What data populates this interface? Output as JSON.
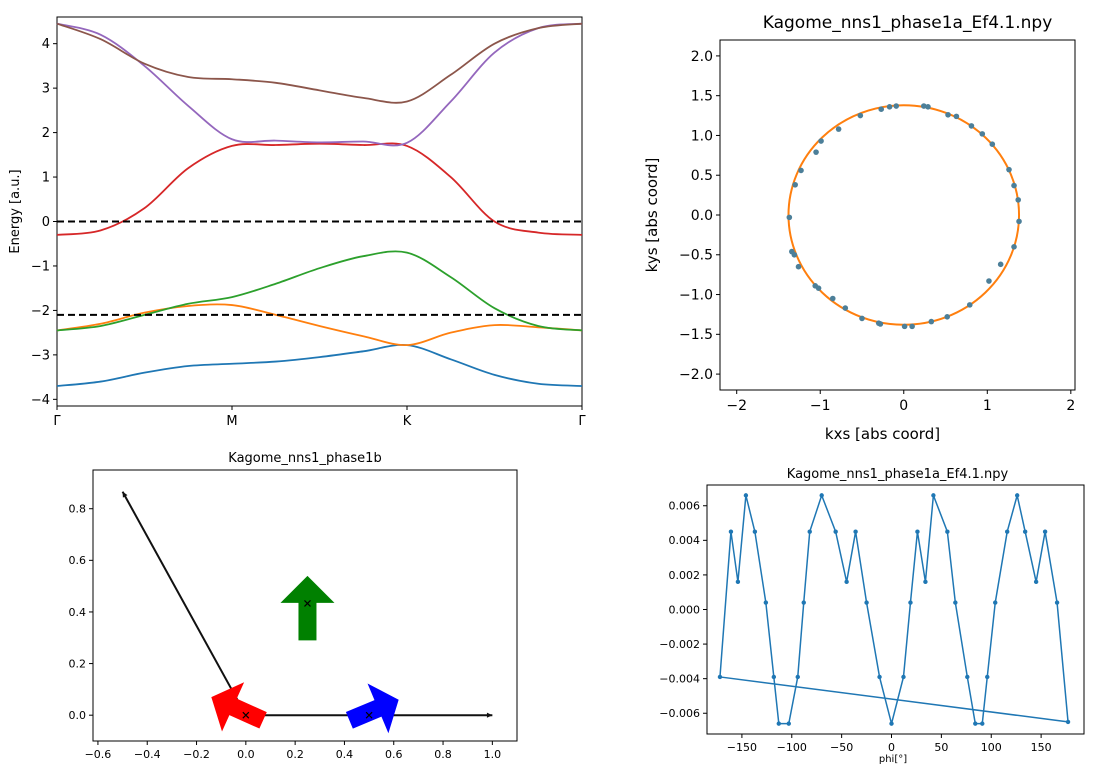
{
  "chart_data": [
    {
      "type": "line",
      "title": "",
      "xlabel": "",
      "ylabel": "Energy [a.u.]",
      "xlim": [
        0,
        3
      ],
      "ylim": [
        -4.15,
        4.6
      ],
      "xticks": [
        0,
        1,
        2,
        3
      ],
      "xticklabels": [
        "Γ",
        "M",
        "K",
        "Γ"
      ],
      "yticks": [
        -4,
        -3,
        -2,
        -1,
        0,
        1,
        2,
        3,
        4
      ],
      "yticklabels": [
        "−4",
        "−3",
        "−2",
        "−1",
        "0",
        "1",
        "2",
        "3",
        "4"
      ],
      "x": [
        0,
        0.25,
        0.5,
        0.75,
        1,
        1.25,
        1.5,
        1.75,
        2,
        2.25,
        2.5,
        2.75,
        3
      ],
      "series": [
        {
          "color": "#1f77b4",
          "values": [
            -3.7,
            -3.6,
            -3.4,
            -3.25,
            -3.2,
            -3.15,
            -3.05,
            -2.92,
            -2.78,
            -3.1,
            -3.45,
            -3.65,
            -3.7
          ]
        },
        {
          "color": "#ff7f0e",
          "values": [
            -2.45,
            -2.3,
            -2.05,
            -1.9,
            -1.88,
            -2.1,
            -2.35,
            -2.58,
            -2.78,
            -2.5,
            -2.33,
            -2.38,
            -2.45
          ]
        },
        {
          "color": "#2ca02c",
          "values": [
            -2.45,
            -2.35,
            -2.1,
            -1.85,
            -1.7,
            -1.4,
            -1.05,
            -0.78,
            -0.7,
            -1.25,
            -1.95,
            -2.35,
            -2.45
          ]
        },
        {
          "color": "#d62728",
          "values": [
            -0.3,
            -0.2,
            0.3,
            1.2,
            1.7,
            1.72,
            1.75,
            1.72,
            1.7,
            1.0,
            0.0,
            -0.25,
            -0.3
          ]
        },
        {
          "color": "#9467bd",
          "values": [
            4.45,
            4.2,
            3.5,
            2.6,
            1.85,
            1.82,
            1.78,
            1.8,
            1.77,
            2.7,
            3.8,
            4.35,
            4.45
          ]
        },
        {
          "color": "#8c564b",
          "values": [
            4.45,
            4.1,
            3.55,
            3.25,
            3.2,
            3.12,
            2.95,
            2.78,
            2.7,
            3.3,
            4.0,
            4.35,
            4.45
          ]
        }
      ],
      "hlines": [
        0,
        -2.1
      ]
    },
    {
      "type": "scatter",
      "title": "Kagome_nns1_phase1a_Ef4.1.npy",
      "xlabel": "kxs [abs coord]",
      "ylabel": "kys [abs coord]",
      "xlim": [
        -2.2,
        2.05
      ],
      "ylim": [
        -2.2,
        2.2
      ],
      "xticks": [
        -2,
        -1,
        0,
        1,
        2
      ],
      "xticklabels": [
        "−2",
        "−1",
        "0",
        "1",
        "2"
      ],
      "yticks": [
        -2.0,
        -1.5,
        -1.0,
        -0.5,
        0.0,
        0.5,
        1.0,
        1.5,
        2.0
      ],
      "yticklabels": [
        "−2.0",
        "−1.5",
        "−1.0",
        "−0.5",
        "0.0",
        "0.5",
        "1.0",
        "1.5",
        "2.0"
      ],
      "fit_circle": {
        "cx": 0.0,
        "cy": 0.0,
        "r": 1.38,
        "color": "#ff7f0e"
      },
      "points_color": "#4c7f99",
      "points": [
        [
          1.37,
          0.19
        ],
        [
          1.38,
          -0.08
        ],
        [
          1.32,
          -0.4
        ],
        [
          1.16,
          -0.62
        ],
        [
          1.02,
          -0.83
        ],
        [
          0.79,
          -1.13
        ],
        [
          0.52,
          -1.28
        ],
        [
          0.33,
          -1.34
        ],
        [
          0.1,
          -1.4
        ],
        [
          0.01,
          -1.4
        ],
        [
          -0.28,
          -1.37
        ],
        [
          -0.3,
          -1.36
        ],
        [
          -0.5,
          -1.3
        ],
        [
          -0.7,
          -1.17
        ],
        [
          -0.85,
          -1.05
        ],
        [
          -1.02,
          -0.92
        ],
        [
          -1.06,
          -0.89
        ],
        [
          -1.26,
          -0.65
        ],
        [
          -1.31,
          -0.5
        ],
        [
          -1.34,
          -0.46
        ],
        [
          -1.37,
          -0.03
        ],
        [
          -1.3,
          0.38
        ],
        [
          -1.23,
          0.56
        ],
        [
          -1.05,
          0.79
        ],
        [
          -0.99,
          0.93
        ],
        [
          -0.78,
          1.08
        ],
        [
          -0.52,
          1.25
        ],
        [
          -0.27,
          1.33
        ],
        [
          -0.17,
          1.36
        ],
        [
          -0.09,
          1.37
        ],
        [
          0.24,
          1.37
        ],
        [
          0.29,
          1.36
        ],
        [
          0.53,
          1.26
        ],
        [
          0.63,
          1.24
        ],
        [
          0.81,
          1.12
        ],
        [
          0.94,
          1.02
        ],
        [
          1.06,
          0.89
        ],
        [
          1.26,
          0.57
        ],
        [
          1.32,
          0.37
        ]
      ]
    },
    {
      "type": "scatter",
      "title": "Kagome_nns1_phase1b",
      "xlabel": "",
      "ylabel": "",
      "xlim": [
        -0.62,
        1.1
      ],
      "ylim": [
        -0.1,
        0.95
      ],
      "xticks": [
        -0.6,
        -0.4,
        -0.2,
        0.0,
        0.2,
        0.4,
        0.6,
        0.8,
        1.0
      ],
      "xticklabels": [
        "−0.6",
        "−0.4",
        "−0.2",
        "0.0",
        "0.2",
        "0.4",
        "0.6",
        "0.8",
        "1.0"
      ],
      "yticks": [
        0.0,
        0.2,
        0.4,
        0.6,
        0.8
      ],
      "yticklabels": [
        "0.0",
        "0.2",
        "0.4",
        "0.6",
        "0.8"
      ],
      "lattice_vectors": [
        {
          "from": [
            0,
            0
          ],
          "to": [
            -0.5,
            0.866
          ]
        },
        {
          "from": [
            0,
            0
          ],
          "to": [
            1,
            0
          ]
        }
      ],
      "sites": [
        [
          0,
          0
        ],
        [
          0.25,
          0.433
        ],
        [
          0.5,
          0
        ]
      ],
      "spin_arrows": [
        {
          "color": "#0000ff",
          "from": [
            0.42,
            -0.02
          ],
          "to": [
            0.62,
            0.06
          ]
        },
        {
          "color": "#ff0000",
          "from": [
            0.07,
            -0.02
          ],
          "to": [
            -0.14,
            0.07
          ]
        },
        {
          "color": "#008000",
          "from": [
            0.25,
            0.29
          ],
          "to": [
            0.25,
            0.54
          ]
        }
      ]
    },
    {
      "type": "line",
      "title": "Kagome_nns1_phase1a_Ef4.1.npy",
      "xlabel": "phi[°]",
      "ylabel": "",
      "xlim": [
        -185,
        193
      ],
      "ylim": [
        -0.0072,
        0.0072
      ],
      "xticks": [
        -150,
        -100,
        -50,
        0,
        50,
        100,
        150
      ],
      "xticklabels": [
        "−150",
        "−100",
        "−50",
        "0",
        "50",
        "100",
        "150"
      ],
      "yticks": [
        -0.006,
        -0.004,
        -0.002,
        0.0,
        0.002,
        0.004,
        0.006
      ],
      "yticklabels": [
        "−0.006",
        "−0.004",
        "−0.002",
        "0.000",
        "0.002",
        "0.004",
        "0.006"
      ],
      "color": "#1f77b4",
      "x": [
        -172,
        -161,
        -154,
        -146,
        -137,
        -126,
        -118,
        -113,
        -103,
        -94,
        -88,
        -82,
        -70,
        -56,
        -45,
        -36,
        -25,
        -12,
        0,
        12,
        19,
        26,
        34,
        42,
        56,
        64,
        76,
        84,
        91,
        96,
        104,
        116,
        126,
        134,
        145,
        154,
        166,
        177
      ],
      "values": [
        -0.0039,
        0.0045,
        0.0016,
        0.0066,
        0.0045,
        0.0004,
        -0.0039,
        -0.0066,
        -0.0066,
        -0.0039,
        0.0004,
        0.0045,
        0.0066,
        0.0045,
        0.0016,
        0.0045,
        0.0004,
        -0.0039,
        -0.0066,
        -0.0039,
        0.0004,
        0.0045,
        0.0016,
        0.0066,
        0.0045,
        0.0004,
        -0.0039,
        -0.0066,
        -0.0066,
        -0.0039,
        0.0004,
        0.0045,
        0.0066,
        0.0045,
        0.0016,
        0.0045,
        0.0004,
        -0.0065
      ]
    }
  ]
}
